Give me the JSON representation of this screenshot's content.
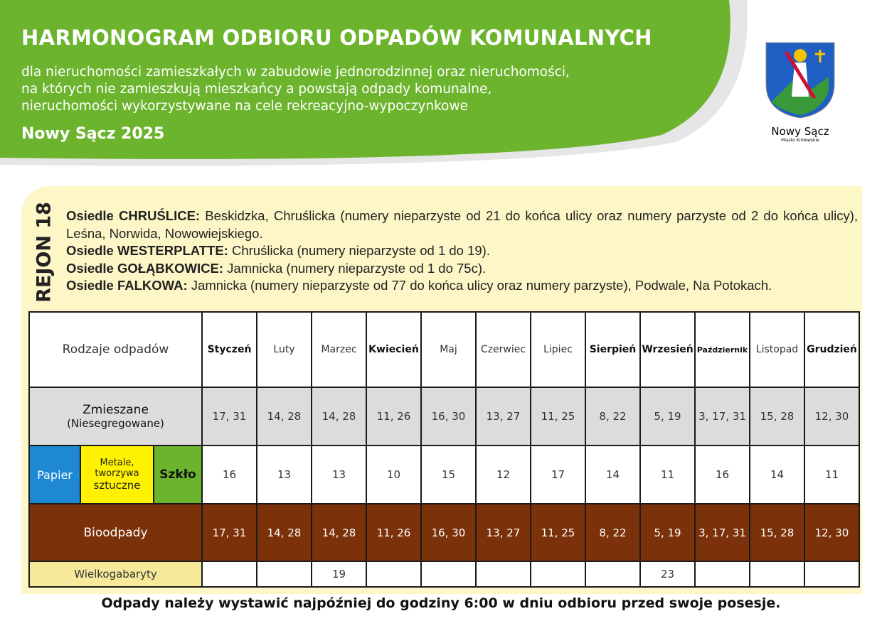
{
  "header": {
    "title": "HARMONOGRAM ODBIORU ODPADÓW KOMUNALNYCH",
    "subtitle_lines": [
      "dla nieruchomości zamieszkałych w zabudowie jednorodzinnej oraz nieruchomości,",
      "na których nie zamieszkują mieszkańcy a powstają odpady komunalne,",
      "nieruchomości wykorzystywane na cele rekreacyjno-wypoczynkowe"
    ],
    "city_year": "Nowy Sącz 2025"
  },
  "logo": {
    "name": "Nowy Sącz",
    "motto": "Miasto Królewskie"
  },
  "region": {
    "label": "REJON 18",
    "lines": [
      {
        "name": "Osiedle CHRUŚLICE:",
        "text": "Beskidzka, Chruślicka (numery nieparzyste od 21 do końca ulicy oraz numery parzyste od 2 do końca ulicy), Leśna, Norwida, Nowowiejskiego."
      },
      {
        "name": "Osiedle WESTERPLATTE:",
        "text": "Chruślicka (numery nieparzyste od 1 do 19)."
      },
      {
        "name": "Osiedle GOŁĄBKOWICE:",
        "text": "Jamnicka (numery nieparzyste od 1 do 75c)."
      },
      {
        "name": "Osiedle FALKOWA:",
        "text": "Jamnicka (numery nieparzyste od 77  do końca ulicy oraz numery parzyste), Podwale, Na Potokach."
      }
    ]
  },
  "table": {
    "header_label": "Rodzaje odpadów",
    "months": [
      "Styczeń",
      "Luty",
      "Marzec",
      "Kwiecień",
      "Maj",
      "Czerwiec",
      "Lipiec",
      "Sierpień",
      "Wrzesień",
      "Październik",
      "Listopad",
      "Grudzień"
    ],
    "mixed": {
      "label": "Zmieszane",
      "sublabel": "(Niesegregowane)",
      "values": [
        "17, 31",
        "14, 28",
        "14, 28",
        "11, 26",
        "16, 30",
        "13, 27",
        "11, 25",
        "8, 22",
        "5, 19",
        "3, 17, 31",
        "15, 28",
        "12, 30"
      ]
    },
    "segregated": {
      "labels": [
        "Papier",
        "Metale, tworzywa",
        "sztuczne",
        "Szkło"
      ],
      "values": [
        16,
        13,
        13,
        10,
        15,
        12,
        17,
        14,
        11,
        16,
        14,
        11
      ]
    },
    "bio": {
      "label": "Bioodpady",
      "values": [
        "17, 31",
        "14, 28",
        "14, 28",
        "11, 26",
        "16, 30",
        "13, 27",
        "11, 25",
        "8, 22",
        "5, 19",
        "3, 17, 31",
        "15, 28",
        "12, 30"
      ]
    },
    "bulky": {
      "label": "Wielkogabaryty",
      "values": [
        null,
        null,
        19,
        null,
        null,
        null,
        null,
        null,
        23,
        null,
        null,
        null
      ]
    }
  },
  "footer": "Odpady należy wystawić najpóźniej do godziny 6:00 w dniu odbioru przed swoje posesje."
}
